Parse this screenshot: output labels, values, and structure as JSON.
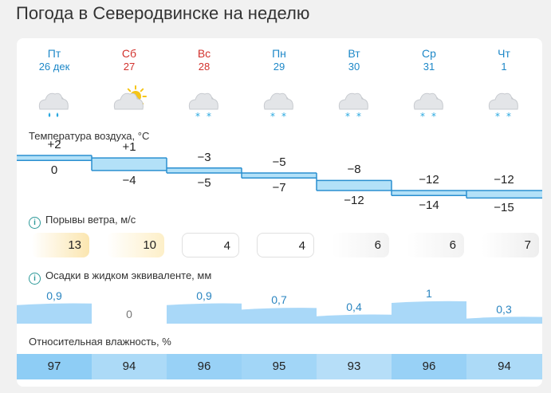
{
  "title": "Погода в Северодвинске на неделю",
  "days": [
    {
      "name": "Пт",
      "date": "26 дек",
      "weekend": false,
      "sun": false,
      "precip_icon": "rain-drops",
      "t_max": "+2",
      "t_min": "0",
      "gust": "13",
      "gust_bg": "#fbe6b0",
      "precip": "0,9",
      "hum": "97"
    },
    {
      "name": "Сб",
      "date": "27",
      "weekend": true,
      "sun": true,
      "precip_icon": "none",
      "t_max": "+1",
      "t_min": "−4",
      "gust": "10",
      "gust_bg": "#fdefc8",
      "precip": "0",
      "hum": "94"
    },
    {
      "name": "Вс",
      "date": "28",
      "weekend": true,
      "sun": false,
      "precip_icon": "snowflakes",
      "t_max": "−3",
      "t_min": "−5",
      "gust": "4",
      "gust_bg": "#ffffff",
      "precip": "0,9",
      "hum": "96"
    },
    {
      "name": "Пн",
      "date": "29",
      "weekend": false,
      "sun": false,
      "precip_icon": "snowflakes",
      "t_max": "−5",
      "t_min": "−7",
      "gust": "4",
      "gust_bg": "#ffffff",
      "precip": "0,7",
      "hum": "95"
    },
    {
      "name": "Вт",
      "date": "30",
      "weekend": false,
      "sun": false,
      "precip_icon": "snowflakes",
      "t_max": "−8",
      "t_min": "−12",
      "gust": "6",
      "gust_bg": "#f2f2f2",
      "precip": "0,4",
      "hum": "93"
    },
    {
      "name": "Ср",
      "date": "31",
      "weekend": false,
      "sun": false,
      "precip_icon": "snowflakes",
      "t_max": "−12",
      "t_min": "−14",
      "gust": "6",
      "gust_bg": "#f2f2f2",
      "precip": "1",
      "hum": "96"
    },
    {
      "name": "Чт",
      "date": "1",
      "weekend": false,
      "sun": false,
      "precip_icon": "snowflakes",
      "t_max": "−12",
      "t_min": "−15",
      "gust": "7",
      "gust_bg": "#eeeeee",
      "precip": "0,3",
      "hum": "94"
    }
  ],
  "temp_label": "Температура воздуха, °C",
  "gust_label": "Порывы ветра, м/с",
  "precip_label": "Осадки в жидком эквиваленте, мм",
  "hum_label": "Относительная влажность, %",
  "colors": {
    "weekday": "#1e88c8",
    "weekend": "#d2322d",
    "temp_line": "#2a8fd0",
    "precip_fill": "#a9d8f8",
    "hum_high": "#8ecdf5",
    "hum_low": "#b6def8"
  },
  "chart_data": {
    "type": "table",
    "categories": [
      "Пт",
      "Сб",
      "Вс",
      "Пн",
      "Вт",
      "Ср",
      "Чт"
    ],
    "series": [
      {
        "name": "Температура воздуха, °C (max)",
        "values": [
          2,
          1,
          -3,
          -5,
          -8,
          -12,
          -12
        ]
      },
      {
        "name": "Температура воздуха, °C (min)",
        "values": [
          0,
          -4,
          -5,
          -7,
          -12,
          -14,
          -15
        ]
      },
      {
        "name": "Порывы ветра, м/с",
        "values": [
          13,
          10,
          4,
          4,
          6,
          6,
          7
        ]
      },
      {
        "name": "Осадки в жидком эквиваленте, мм",
        "values": [
          0.9,
          0,
          0.9,
          0.7,
          0.4,
          1,
          0.3
        ]
      },
      {
        "name": "Относительная влажность, %",
        "values": [
          97,
          94,
          96,
          95,
          93,
          96,
          94
        ]
      }
    ]
  }
}
